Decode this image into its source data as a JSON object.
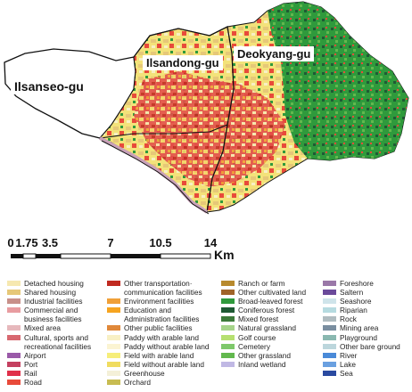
{
  "map": {
    "districts": [
      {
        "id": "ilsanseo",
        "label": "Ilsanseo-gu"
      },
      {
        "id": "ilsandong",
        "label": "Ilsandong-gu"
      },
      {
        "id": "deokyang",
        "label": "Deokyang-gu"
      }
    ]
  },
  "scale_bar": {
    "ticks": [
      "0",
      "1.75",
      "3.5",
      "7",
      "10.5",
      "14"
    ],
    "unit": "Km"
  },
  "legend": {
    "columns": [
      [
        {
          "label": "Detached housing",
          "color": "#f6e8b0"
        },
        {
          "label": "Shared housing",
          "color": "#e6c878"
        },
        {
          "label": "Industrial facilities",
          "color": "#c8908a"
        },
        {
          "label": "Commercial and\nbusiness facilities",
          "color": "#e89ca0"
        },
        {
          "label": "Mixed area",
          "color": "#e6b8bc"
        },
        {
          "label": "Cultural, sports and\nrecreational facilities",
          "color": "#d86870"
        },
        {
          "label": "Airport",
          "color": "#9a5aa8"
        },
        {
          "label": "Port",
          "color": "#c44060"
        },
        {
          "label": "Rail",
          "color": "#e0304a"
        },
        {
          "label": "Road",
          "color": "#e84a3a"
        }
      ],
      [
        {
          "label": "Other transportation·\ncommunication facilities",
          "color": "#c02a20"
        },
        {
          "label": "Environment facilities",
          "color": "#f0a038"
        },
        {
          "label": "Education and\nAdministration facilities",
          "color": "#f6a420"
        },
        {
          "label": "Other public facilities",
          "color": "#e0883a"
        },
        {
          "label": "Paddy with arable land",
          "color": "#f8f0c4"
        },
        {
          "label": "Paddy without arable land",
          "color": "#fbf4d2"
        },
        {
          "label": "Field with arable land",
          "color": "#f6ee7a"
        },
        {
          "label": "Field without arable land",
          "color": "#f0dc60"
        },
        {
          "label": "Greenhouse",
          "color": "#f4f0d8"
        },
        {
          "label": "Orchard",
          "color": "#c8bc52"
        }
      ],
      [
        {
          "label": "Ranch or farm",
          "color": "#b88a2e"
        },
        {
          "label": "Other cultivated land",
          "color": "#a06428"
        },
        {
          "label": "Broad-leaved forest",
          "color": "#2f9a3c"
        },
        {
          "label": "Coniferous forest",
          "color": "#1f5a34"
        },
        {
          "label": "Mixed forest",
          "color": "#3c7a3a"
        },
        {
          "label": "Natural grassland",
          "color": "#a6d48a"
        },
        {
          "label": "Golf course",
          "color": "#b6e070"
        },
        {
          "label": "Cemetery",
          "color": "#7ec86a"
        },
        {
          "label": "Other grassland",
          "color": "#62b84e"
        },
        {
          "label": "Inland wetland",
          "color": "#c0b8e4"
        }
      ],
      [
        {
          "label": "Foreshore",
          "color": "#9a78a8"
        },
        {
          "label": "Saltern",
          "color": "#6a4a9a"
        },
        {
          "label": "Seashore",
          "color": "#cfe4ea"
        },
        {
          "label": "Riparian",
          "color": "#b6dbe0"
        },
        {
          "label": "Rock",
          "color": "#b0bcc0"
        },
        {
          "label": "Mining area",
          "color": "#7a8ea0"
        },
        {
          "label": "Playground",
          "color": "#8ab8b0"
        },
        {
          "label": "Other bare ground",
          "color": "#bcd6dc"
        },
        {
          "label": "River",
          "color": "#4a8ad8"
        },
        {
          "label": "Lake",
          "color": "#6aa0e0"
        },
        {
          "label": "Sea",
          "color": "#2a4aa0"
        }
      ]
    ]
  }
}
